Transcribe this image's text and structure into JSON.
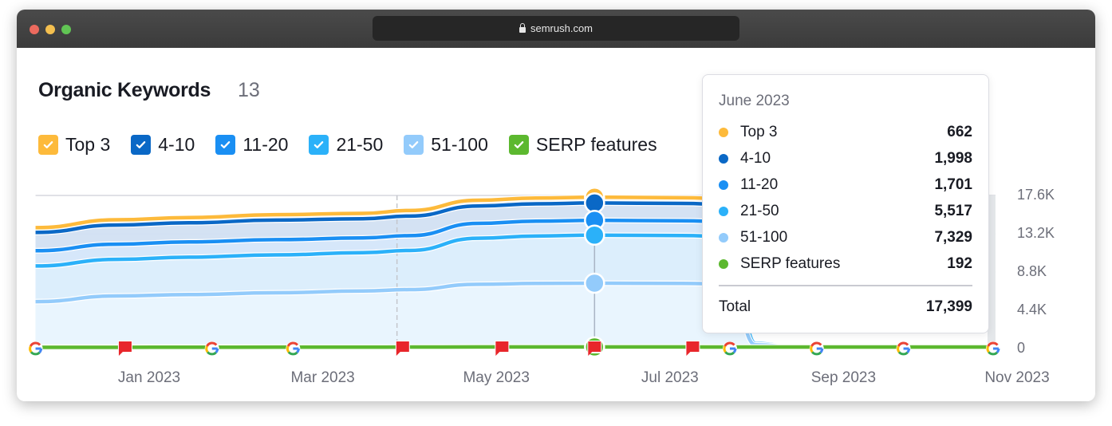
{
  "browser": {
    "url": "semrush.com",
    "traffic_lights": [
      "#ec6a5e",
      "#f4bf4f",
      "#61c554"
    ]
  },
  "header": {
    "title": "Organic Keywords",
    "count": "13"
  },
  "legend": [
    {
      "label": "Top 3",
      "color": "#fdba3b",
      "checked": true
    },
    {
      "label": "4-10",
      "color": "#0a68c6",
      "checked": true
    },
    {
      "label": "11-20",
      "color": "#1a8ff3",
      "checked": true
    },
    {
      "label": "21-50",
      "color": "#2bb1f9",
      "checked": true
    },
    {
      "label": "51-100",
      "color": "#93cbfb",
      "checked": true
    },
    {
      "label": "SERP features",
      "color": "#5cb82f",
      "checked": true
    }
  ],
  "tooltip": {
    "title": "June 2023",
    "rows": [
      {
        "label": "Top 3",
        "value": "662",
        "color": "#fdba3b"
      },
      {
        "label": "4-10",
        "value": "1,998",
        "color": "#0a68c6"
      },
      {
        "label": "11-20",
        "value": "1,701",
        "color": "#1a8ff3"
      },
      {
        "label": "21-50",
        "value": "5,517",
        "color": "#2bb1f9"
      },
      {
        "label": "51-100",
        "value": "7,329",
        "color": "#93cbfb"
      },
      {
        "label": "SERP features",
        "value": "192",
        "color": "#5cb82f"
      }
    ],
    "total_label": "Total",
    "total_value": "17,399"
  },
  "chart_data": {
    "type": "area",
    "stacked": true,
    "ylim": [
      0,
      17600
    ],
    "y_ticks": [
      "17.6K",
      "13.2K",
      "8.8K",
      "4.4K",
      "0"
    ],
    "y_tick_values": [
      17600,
      13200,
      8800,
      4400,
      0
    ],
    "x_ticks": [
      {
        "label": "Jan 2023",
        "date": "2023-01-01"
      },
      {
        "label": "Mar 2023",
        "date": "2023-03-01"
      },
      {
        "label": "May 2023",
        "date": "2023-05-01"
      },
      {
        "label": "Jul 2023",
        "date": "2023-07-01"
      },
      {
        "label": "Sep 2023",
        "date": "2023-09-01"
      },
      {
        "label": "Nov 2023",
        "date": "2023-11-01"
      }
    ],
    "xlim": [
      "2022-11-22",
      "2023-10-23"
    ],
    "grid": true,
    "hover_date": "2023-06-05",
    "dates": [
      "2022-11-22",
      "2022-12-20",
      "2023-01-15",
      "2023-02-15",
      "2023-03-15",
      "2023-04-01",
      "2023-04-25",
      "2023-05-15",
      "2023-06-05",
      "2023-07-05",
      "2023-07-22",
      "2023-07-31",
      "2023-08-15",
      "2023-09-15",
      "2023-10-23"
    ],
    "series": [
      {
        "name": "SERP features",
        "color": "#5cb82f",
        "values": [
          150,
          150,
          160,
          170,
          170,
          180,
          190,
          190,
          192,
          190,
          185,
          180,
          180,
          180,
          180
        ]
      },
      {
        "name": "51-100",
        "color": "#93cbfb",
        "values": [
          5250,
          5900,
          6050,
          6250,
          6450,
          6600,
          7200,
          7300,
          7329,
          7300,
          7250,
          250,
          20,
          0,
          0
        ]
      },
      {
        "name": "21-50",
        "color": "#2bb1f9",
        "values": [
          4100,
          4200,
          4300,
          4350,
          4400,
          4500,
          5300,
          5450,
          5517,
          5500,
          5450,
          150,
          10,
          0,
          0
        ]
      },
      {
        "name": "11-20",
        "color": "#1a8ff3",
        "values": [
          1750,
          1750,
          1750,
          1750,
          1700,
          1700,
          1700,
          1700,
          1701,
          1700,
          1690,
          60,
          5,
          0,
          0
        ]
      },
      {
        "name": "4-10",
        "color": "#0a68c6",
        "values": [
          2100,
          2200,
          2200,
          2250,
          2200,
          2250,
          2000,
          2000,
          1998,
          1990,
          1980,
          30,
          3,
          0,
          0
        ]
      },
      {
        "name": "Top 3",
        "color": "#fdba3b",
        "values": [
          550,
          600,
          600,
          620,
          620,
          640,
          660,
          660,
          662,
          660,
          655,
          10,
          1,
          0,
          0
        ]
      }
    ],
    "events": [
      {
        "date": "2022-11-22",
        "type": "google-update"
      },
      {
        "date": "2022-12-23",
        "type": "note-flag"
      },
      {
        "date": "2023-01-23",
        "type": "google-update"
      },
      {
        "date": "2023-02-21",
        "type": "google-update"
      },
      {
        "date": "2023-03-29",
        "type": "note-flag"
      },
      {
        "date": "2023-05-03",
        "type": "note-flag"
      },
      {
        "date": "2023-06-05",
        "type": "note-flag"
      },
      {
        "date": "2023-07-09",
        "type": "note-flag"
      },
      {
        "date": "2023-07-22",
        "type": "google-update"
      },
      {
        "date": "2023-08-22",
        "type": "google-update"
      },
      {
        "date": "2023-09-22",
        "type": "google-update"
      },
      {
        "date": "2023-10-23",
        "type": "google-update"
      }
    ],
    "marker_date": "2023-03-27"
  }
}
